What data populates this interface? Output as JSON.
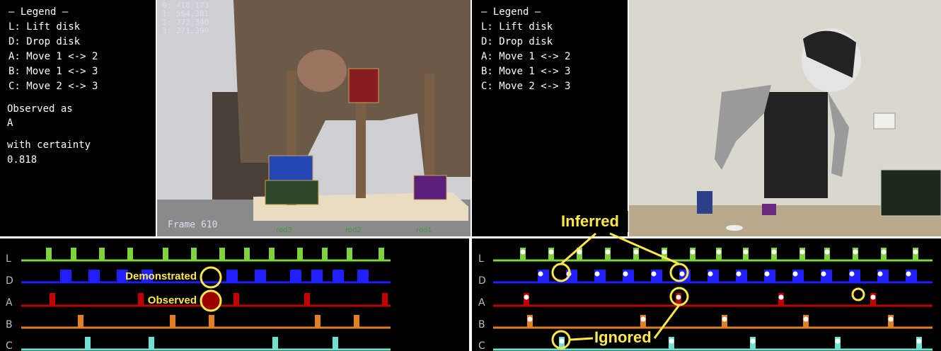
{
  "left_panel": {
    "legend_title": "– Legend –",
    "legend_items": [
      "L: Lift disk",
      "D: Drop disk",
      "A: Move 1 <-> 2",
      "B: Move 1 <-> 3",
      "C: Move 2 <-> 3"
    ],
    "observed_label": "Observed as",
    "observed_value": "A",
    "certainty_label": "with certainty",
    "certainty_value": "0.818"
  },
  "left_video": {
    "coords": [
      "0: 418,173",
      "1: 564,381",
      "2: 272,340",
      "3: 271,390"
    ],
    "frame": "Frame 610",
    "rods": [
      "rod3",
      "rod2",
      "rod1"
    ]
  },
  "right_panel": {
    "legend_title": "– Legend –",
    "legend_items": [
      "L: Lift disk",
      "D: Drop disk",
      "A: Move 1 <-> 2",
      "B: Move 1 <-> 3",
      "C: Move 2 <-> 3"
    ]
  },
  "bottom_left": {
    "rows": [
      "L",
      "D",
      "A",
      "B",
      "C"
    ],
    "annotations": [
      "Demonstrated",
      "Observed"
    ]
  },
  "bottom_right": {
    "rows": [
      "L",
      "D",
      "A",
      "B",
      "C"
    ],
    "annotations": [
      "Inferred",
      "Ignored"
    ]
  }
}
